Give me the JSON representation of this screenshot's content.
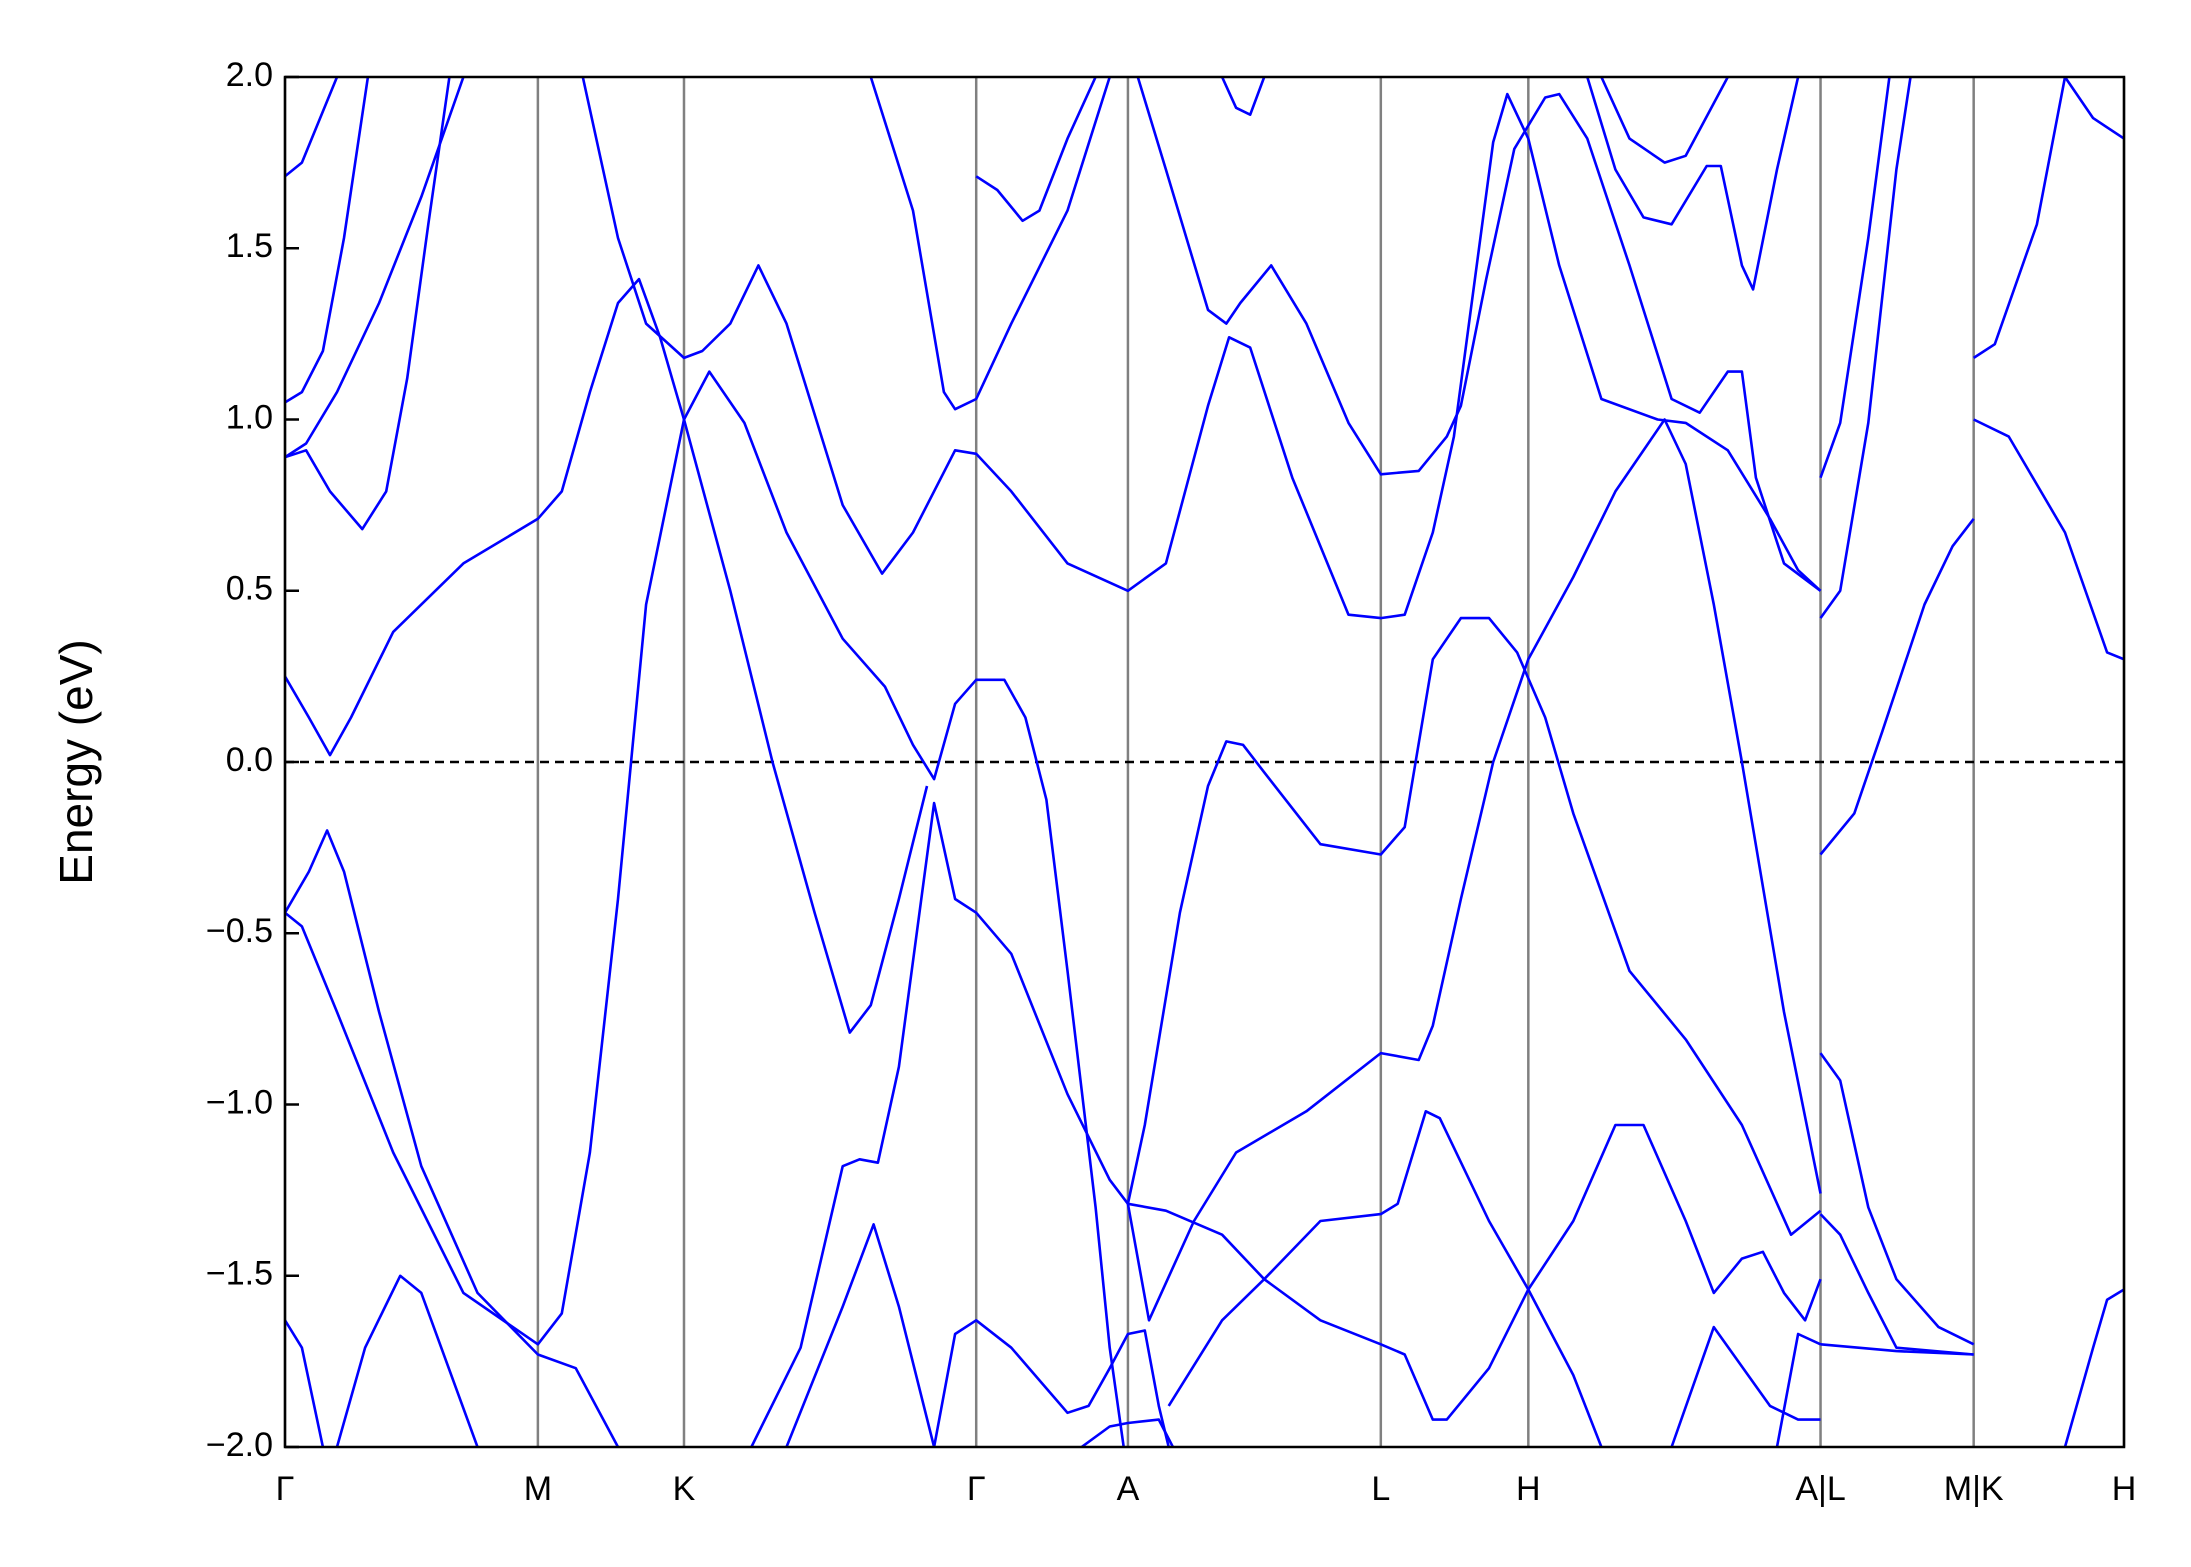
{
  "chart_data": {
    "type": "line",
    "ylabel": "Energy (eV)",
    "color": "#0000ff",
    "xlim": [
      0,
      13.09
    ],
    "ylim": [
      -2,
      2
    ],
    "xticks": [
      {
        "value": 0,
        "label": "Γ"
      },
      {
        "value": 1.8,
        "label": "M"
      },
      {
        "value": 2.84,
        "label": "K"
      },
      {
        "value": 4.92,
        "label": "Γ"
      },
      {
        "value": 6.0,
        "label": "A"
      },
      {
        "value": 7.8,
        "label": "L"
      },
      {
        "value": 8.85,
        "label": "H"
      },
      {
        "value": 10.93,
        "label": "A|L"
      },
      {
        "value": 12.02,
        "label": "M|K"
      },
      {
        "value": 13.09,
        "label": "H"
      }
    ],
    "yticks": [
      {
        "value": -2,
        "label": "−2.0"
      },
      {
        "value": -1.5,
        "label": "−1.5"
      },
      {
        "value": -1,
        "label": "−1.0"
      },
      {
        "value": -0.5,
        "label": "−0.5"
      },
      {
        "value": 0,
        "label": "0.0"
      },
      0.5,
      {
        "value": 1,
        "label": "1.0"
      },
      1.5,
      {
        "value": 2,
        "label": "2.0"
      }
    ],
    "fermi_level": 0,
    "series": [
      {
        "x": [
          0,
          0.17,
          0.32,
          0.47,
          0.77,
          1.27,
          1.8,
          1.97,
          2.17,
          2.37,
          2.52,
          2.67,
          2.84,
          3.17,
          3.47,
          3.77,
          4.02,
          4.17,
          4.37,
          4.57
        ],
        "values": [
          0.25,
          0.13,
          0.02,
          0.13,
          0.38,
          0.58,
          0.71,
          0.79,
          1.08,
          1.34,
          1.41,
          1.24,
          1.0,
          0.5,
          0.0,
          -0.44,
          -0.79,
          -0.71,
          -0.4,
          -0.07
        ]
      },
      {
        "x": [
          0,
          0.12,
          0.37,
          0.77,
          1.27,
          1.8,
          1.97,
          2.17,
          2.37,
          2.57,
          2.84,
          3.02,
          3.27,
          3.57,
          3.97,
          4.27,
          4.47,
          4.62,
          4.77,
          4.92,
          5.12,
          5.27,
          5.42,
          5.57,
          5.77,
          5.87,
          5.97
        ],
        "values": [
          -0.44,
          -0.48,
          -0.73,
          -1.14,
          -1.55,
          -1.7,
          -1.61,
          -1.14,
          -0.4,
          0.46,
          1.0,
          1.14,
          0.99,
          0.67,
          0.36,
          0.22,
          0.05,
          -0.05,
          0.17,
          0.24,
          0.24,
          0.13,
          -0.11,
          -0.61,
          -1.3,
          -1.71,
          -2.0
        ]
      },
      {
        "x": [
          0,
          0.17,
          0.3,
          0.42,
          0.67,
          0.97,
          1.37,
          1.8,
          2.07,
          2.37
        ],
        "values": [
          -0.44,
          -0.32,
          -0.2,
          -0.32,
          -0.73,
          -1.18,
          -1.55,
          -1.73,
          -1.77,
          -2.0
        ]
      },
      {
        "x": [
          3.32,
          3.67,
          3.97,
          4.09,
          4.22,
          4.37,
          4.62,
          4.77,
          4.92,
          5.17,
          5.57,
          5.87,
          6.0,
          6.27,
          6.67,
          6.97,
          7.37,
          7.8,
          7.97,
          8.17,
          8.27,
          8.57,
          8.85,
          9.17,
          9.47,
          9.67,
          9.97,
          10.17,
          10.37,
          10.52,
          10.67,
          10.82,
          10.93
        ],
        "values": [
          -2.0,
          -1.71,
          -1.18,
          -1.16,
          -1.17,
          -0.89,
          -0.12,
          -0.4,
          -0.44,
          -0.56,
          -0.97,
          -1.22,
          -1.29,
          -1.31,
          -1.38,
          -1.51,
          -1.63,
          -1.7,
          -1.73,
          -1.92,
          -1.92,
          -1.77,
          -1.54,
          -1.34,
          -1.06,
          -1.06,
          -1.34,
          -1.55,
          -1.45,
          -1.43,
          -1.55,
          -1.63,
          -1.51
        ]
      },
      {
        "x": [
          3.57,
          3.97,
          4.19,
          4.37,
          4.62
        ],
        "values": [
          -2.0,
          -1.59,
          -1.35,
          -1.59,
          -2.0
        ]
      },
      {
        "x": [
          4.62,
          4.77,
          4.92,
          5.17,
          5.57,
          5.72,
          5.87,
          6.0,
          6.12,
          6.22,
          6.29
        ],
        "values": [
          -2.0,
          -1.67,
          -1.63,
          -1.71,
          -1.9,
          -1.88,
          -1.77,
          -1.67,
          -1.66,
          -1.88,
          -2.0
        ]
      },
      {
        "x": [
          6.0,
          6.12,
          6.37,
          6.57,
          6.7,
          6.82,
          6.97,
          7.37,
          7.8,
          7.97,
          8.17,
          8.37,
          8.57,
          8.77,
          8.97,
          9.17,
          9.57,
          9.97,
          10.37,
          10.72,
          10.93
        ],
        "values": [
          -1.29,
          -1.06,
          -0.44,
          -0.07,
          0.06,
          0.05,
          -0.03,
          -0.24,
          -0.27,
          -0.19,
          0.3,
          0.42,
          0.42,
          0.32,
          0.13,
          -0.15,
          -0.61,
          -0.81,
          -1.06,
          -1.38,
          -1.31
        ]
      },
      {
        "x": [
          6.0,
          6.15,
          6.47,
          6.77,
          7.27,
          7.8,
          8.07,
          8.17,
          8.37,
          8.6,
          8.85,
          9.17,
          9.47,
          9.82,
          9.97,
          10.17,
          10.37,
          10.67,
          10.93
        ],
        "values": [
          -1.29,
          -1.63,
          -1.34,
          -1.14,
          -1.02,
          -0.85,
          -0.87,
          -0.77,
          -0.4,
          0.0,
          0.3,
          0.54,
          0.79,
          1.0,
          0.87,
          0.46,
          0.0,
          -0.73,
          -1.26
        ]
      },
      {
        "x": [
          6.29,
          6.67,
          6.97,
          7.37,
          7.8,
          7.92,
          8.12,
          8.22,
          8.57,
          8.85,
          9.17,
          9.37
        ],
        "values": [
          -1.88,
          -1.63,
          -1.51,
          -1.34,
          -1.32,
          -1.29,
          -1.02,
          -1.04,
          -1.34,
          -1.54,
          -1.79,
          -2.0
        ]
      },
      {
        "x": [
          0,
          0.12,
          0.37
        ],
        "values": [
          1.71,
          1.75,
          2.0
        ]
      },
      {
        "x": [
          0,
          0.12,
          0.27,
          0.42,
          0.59
        ],
        "values": [
          1.05,
          1.08,
          1.2,
          1.53,
          2.0
        ]
      },
      {
        "x": [
          0,
          0.15,
          0.37,
          0.67,
          0.97,
          1.27
        ],
        "values": [
          0.89,
          0.93,
          1.08,
          1.34,
          1.65,
          2.0
        ]
      },
      {
        "x": [
          0,
          0.15,
          0.32,
          0.55,
          0.72,
          0.87,
          1.02,
          1.17
        ],
        "values": [
          0.89,
          0.91,
          0.79,
          0.68,
          0.79,
          1.12,
          1.57,
          2.0
        ]
      },
      {
        "x": [
          2.12,
          2.37,
          2.57,
          2.84,
          2.97,
          3.17,
          3.37,
          3.57,
          3.97,
          4.25,
          4.47,
          4.77,
          4.92,
          5.17,
          5.57,
          6.0,
          6.27,
          6.57,
          6.72,
          6.87,
          7.17,
          7.57,
          7.8,
          7.97,
          8.17,
          8.32,
          8.47,
          8.6,
          8.7,
          8.85,
          9.07,
          9.37,
          9.77,
          9.97,
          10.27,
          10.57,
          10.77,
          10.93
        ],
        "values": [
          2.0,
          1.53,
          1.28,
          1.18,
          1.2,
          1.28,
          1.45,
          1.28,
          0.75,
          0.55,
          0.67,
          0.91,
          0.9,
          0.79,
          0.58,
          0.5,
          0.58,
          1.04,
          1.24,
          1.21,
          0.83,
          0.43,
          0.42,
          0.43,
          0.67,
          0.95,
          1.41,
          1.81,
          1.95,
          1.82,
          1.45,
          1.06,
          1.0,
          0.99,
          0.91,
          0.71,
          0.56,
          0.5
        ]
      },
      {
        "x": [
          4.17,
          4.47,
          4.69,
          4.77,
          4.92,
          5.17,
          5.57,
          5.87
        ],
        "values": [
          2.0,
          1.61,
          1.08,
          1.03,
          1.06,
          1.28,
          1.61,
          2.0
        ]
      },
      {
        "x": [
          4.92,
          5.07,
          5.25,
          5.37,
          5.57,
          5.77
        ],
        "values": [
          1.71,
          1.67,
          1.58,
          1.61,
          1.82,
          2.0
        ]
      },
      {
        "x": [
          6.07,
          6.27,
          6.57,
          6.7,
          6.8,
          7.02,
          7.27,
          7.57,
          7.8,
          8.07,
          8.27,
          8.37,
          8.55,
          8.75,
          8.97,
          9.07,
          9.27,
          9.57,
          9.87,
          10.07,
          10.27,
          10.37,
          10.47,
          10.67,
          10.93
        ],
        "values": [
          2.0,
          1.73,
          1.32,
          1.28,
          1.34,
          1.45,
          1.28,
          0.99,
          0.84,
          0.85,
          0.95,
          1.04,
          1.41,
          1.79,
          1.94,
          1.95,
          1.82,
          1.45,
          1.06,
          1.02,
          1.14,
          1.14,
          0.83,
          0.58,
          0.5
        ]
      },
      {
        "x": [
          6.67,
          6.77,
          6.87,
          6.97
        ],
        "values": [
          2.0,
          1.91,
          1.89,
          2.0
        ]
      },
      {
        "x": [
          9.37,
          9.57,
          9.82,
          9.97,
          10.27
        ],
        "values": [
          2.0,
          1.82,
          1.75,
          1.77,
          2.0
        ]
      },
      {
        "x": [
          9.27,
          9.47,
          9.67,
          9.87,
          10.12,
          10.22,
          10.37,
          10.45,
          10.62,
          10.77
        ],
        "values": [
          2.0,
          1.73,
          1.59,
          1.57,
          1.74,
          1.74,
          1.45,
          1.38,
          1.73,
          2.0
        ]
      },
      {
        "x": [
          10.93,
          11.07,
          11.27,
          11.47,
          11.57
        ],
        "values": [
          0.42,
          0.5,
          0.99,
          1.73,
          2.0
        ]
      },
      {
        "x": [
          10.93,
          11.07,
          11.27,
          11.42
        ],
        "values": [
          0.83,
          0.99,
          1.53,
          2.0
        ]
      },
      {
        "x": [
          10.93,
          11.17,
          11.37,
          11.67,
          11.87,
          12.02
        ],
        "values": [
          -0.27,
          -0.15,
          0.09,
          0.46,
          0.63,
          0.71
        ]
      },
      {
        "x": [
          12.02,
          12.17,
          12.47,
          12.67
        ],
        "values": [
          1.18,
          1.22,
          1.57,
          2.0
        ]
      },
      {
        "x": [
          12.02,
          12.27,
          12.67,
          12.97,
          13.09
        ],
        "values": [
          1.0,
          0.95,
          0.67,
          0.32,
          0.3
        ]
      },
      {
        "x": [
          12.67,
          12.87,
          13.09
        ],
        "values": [
          2.0,
          1.88,
          1.82
        ]
      },
      {
        "x": [
          10.93,
          11.07,
          11.27,
          11.47,
          11.77,
          12.02
        ],
        "values": [
          -0.85,
          -0.93,
          -1.3,
          -1.51,
          -1.65,
          -1.7
        ]
      },
      {
        "x": [
          10.93,
          11.07,
          11.27,
          11.47,
          12.02
        ],
        "values": [
          -1.32,
          -1.38,
          -1.55,
          -1.71,
          -1.73
        ]
      },
      {
        "x": [
          10.93,
          11.47,
          12.02
        ],
        "values": [
          -1.7,
          -1.72,
          -1.73
        ]
      },
      {
        "x": [
          12.67,
          12.87,
          12.97,
          13.09
        ],
        "values": [
          -2.0,
          -1.71,
          -1.57,
          -1.54
        ]
      },
      {
        "x": [
          10.62,
          10.77,
          10.93
        ],
        "values": [
          -2.0,
          -1.67,
          -1.7
        ]
      },
      {
        "x": [
          9.87,
          10.17,
          10.57,
          10.77,
          10.93
        ],
        "values": [
          -2.0,
          -1.65,
          -1.88,
          -1.92,
          -1.92
        ]
      },
      {
        "x": [
          0,
          0.12,
          0.27
        ],
        "values": [
          -1.63,
          -1.71,
          -2.0
        ]
      },
      {
        "x": [
          0.37,
          0.57,
          0.82,
          0.97,
          1.37
        ],
        "values": [
          -2.0,
          -1.71,
          -1.5,
          -1.55,
          -2.0
        ]
      },
      {
        "x": [
          5.67,
          5.87,
          6.0,
          6.22,
          6.32
        ],
        "values": [
          -2.0,
          -1.94,
          -1.93,
          -1.92,
          -2.0
        ]
      }
    ]
  }
}
